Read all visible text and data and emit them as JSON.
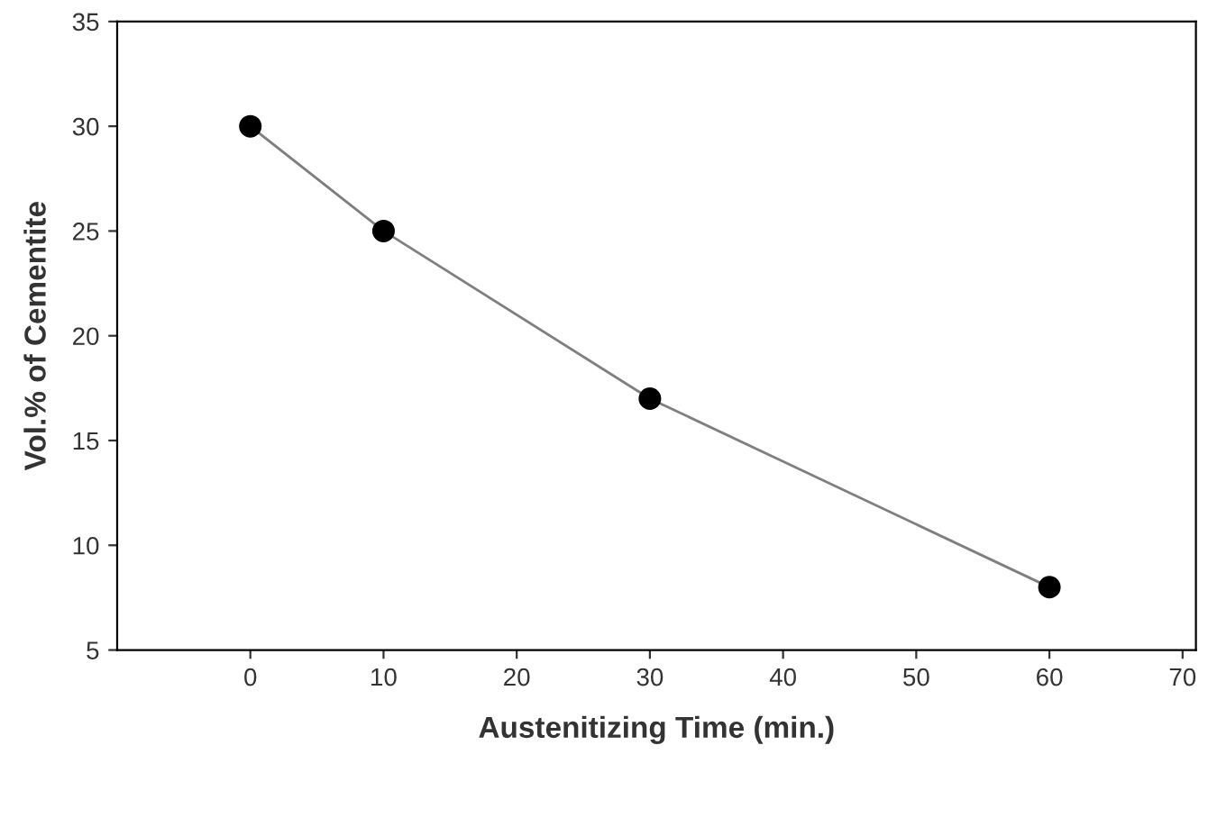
{
  "chart_data": {
    "type": "line",
    "xlabel": "Austenitizing Time (min.)",
    "ylabel": "Vol.% of Cementite",
    "x": [
      0,
      10,
      30,
      60
    ],
    "series": [
      {
        "color": "#000000",
        "values": [
          30,
          25,
          17,
          8
        ]
      }
    ],
    "marker": "circle",
    "line_style": "solid",
    "grid": false,
    "legend": false,
    "xlim": [
      -10,
      71
    ],
    "xticks": [
      0,
      10,
      20,
      30,
      40,
      50,
      60,
      70
    ],
    "ylim": [
      5,
      35
    ],
    "yticks": [
      5,
      10,
      15,
      20,
      25,
      30,
      35
    ]
  }
}
